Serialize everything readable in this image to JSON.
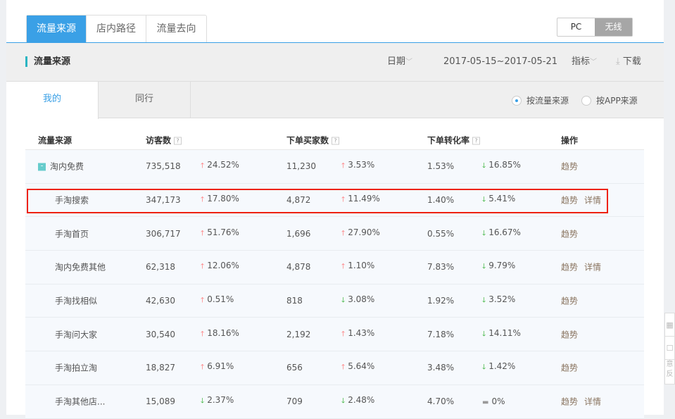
{
  "top_tabs": [
    "流量来源",
    "店内路径",
    "流量去向"
  ],
  "device_switch": {
    "pc": "PC",
    "wireless": "无线",
    "selected": "无线"
  },
  "toolbar": {
    "title": "流量来源",
    "date_label": "日期",
    "date_range": "2017-05-15~2017-05-21",
    "metrics_label": "指标",
    "download_label": "下载"
  },
  "sub_tabs": [
    "我的",
    "同行"
  ],
  "radios": {
    "by_source": "按流量来源",
    "by_app": "按APP来源",
    "selected": "按流量来源"
  },
  "table": {
    "headers": [
      "流量来源",
      "访客数",
      "下单买家数",
      "下单转化率",
      "操作"
    ],
    "help": "?",
    "rows": [
      {
        "name": "淘内免费",
        "visitors": "735,518",
        "v_dir": "up",
        "v_chg": "24.52%",
        "buyers": "11,230",
        "b_dir": "up",
        "b_chg": "3.53%",
        "rate": "1.53%",
        "r_dir": "down",
        "r_chg": "16.85%",
        "trend": "趋势",
        "detail": "",
        "parent": true,
        "collapse": "-"
      },
      {
        "name": "手淘搜索",
        "visitors": "347,173",
        "v_dir": "up",
        "v_chg": "17.80%",
        "buyers": "4,872",
        "b_dir": "up",
        "b_chg": "11.49%",
        "rate": "1.40%",
        "r_dir": "down",
        "r_chg": "5.41%",
        "trend": "趋势",
        "detail": "详情",
        "highlighted": true
      },
      {
        "name": "手淘首页",
        "visitors": "306,717",
        "v_dir": "up",
        "v_chg": "51.76%",
        "buyers": "1,696",
        "b_dir": "up",
        "b_chg": "27.90%",
        "rate": "0.55%",
        "r_dir": "down",
        "r_chg": "16.67%",
        "trend": "趋势",
        "detail": ""
      },
      {
        "name": "淘内免费其他",
        "visitors": "62,318",
        "v_dir": "up",
        "v_chg": "12.06%",
        "buyers": "4,878",
        "b_dir": "up",
        "b_chg": "1.10%",
        "rate": "7.83%",
        "r_dir": "down",
        "r_chg": "9.79%",
        "trend": "趋势",
        "detail": "详情"
      },
      {
        "name": "手淘找相似",
        "visitors": "42,630",
        "v_dir": "up",
        "v_chg": "0.51%",
        "buyers": "818",
        "b_dir": "down",
        "b_chg": "3.08%",
        "rate": "1.92%",
        "r_dir": "down",
        "r_chg": "3.52%",
        "trend": "趋势",
        "detail": ""
      },
      {
        "name": "手淘问大家",
        "visitors": "30,540",
        "v_dir": "up",
        "v_chg": "18.16%",
        "buyers": "2,192",
        "b_dir": "up",
        "b_chg": "1.43%",
        "rate": "7.18%",
        "r_dir": "down",
        "r_chg": "14.11%",
        "trend": "趋势",
        "detail": ""
      },
      {
        "name": "手淘拍立淘",
        "visitors": "18,827",
        "v_dir": "up",
        "v_chg": "6.91%",
        "buyers": "656",
        "b_dir": "up",
        "b_chg": "5.64%",
        "rate": "3.48%",
        "r_dir": "down",
        "r_chg": "1.42%",
        "trend": "趋势",
        "detail": ""
      },
      {
        "name": "手淘其他店...",
        "visitors": "15,089",
        "v_dir": "down",
        "v_chg": "2.37%",
        "buyers": "709",
        "b_dir": "down",
        "b_chg": "2.48%",
        "rate": "4.70%",
        "r_dir": "flat",
        "r_chg": "0%",
        "trend": "趋势",
        "detail": "详情"
      }
    ]
  },
  "side_widget": {
    "feedback": "意反"
  }
}
